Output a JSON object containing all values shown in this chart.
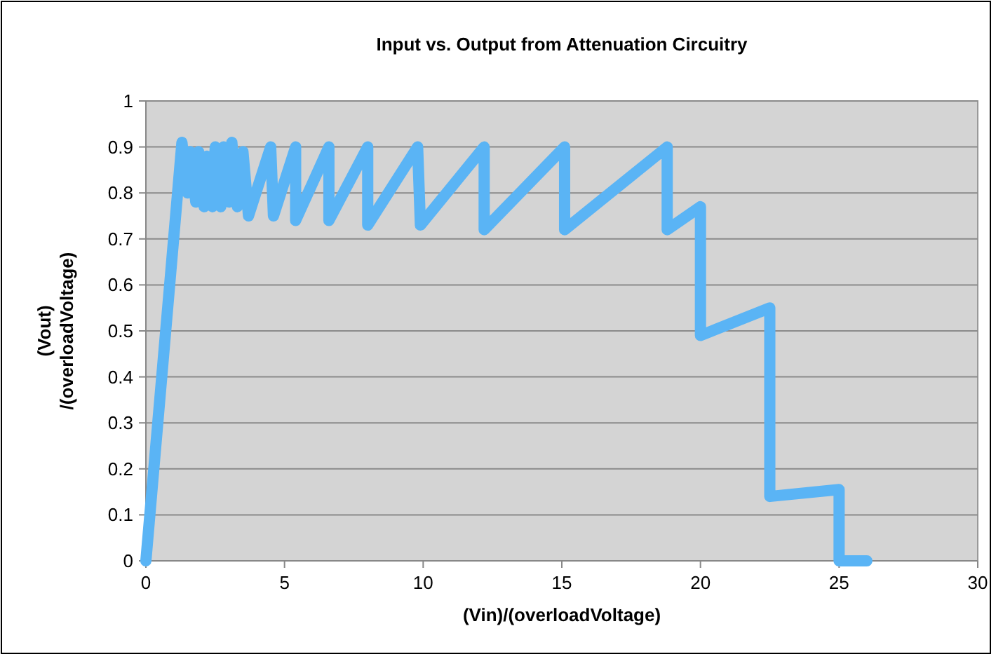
{
  "chart_data": {
    "type": "line",
    "title": "Input vs. Output from Attenuation Circuitry",
    "xlabel": "(Vin)/(overloadVoltage)",
    "ylabel": "(Vout) /(overloadVoltage)",
    "xlim": [
      0,
      30
    ],
    "xticks": [
      0,
      5,
      10,
      15,
      20,
      25,
      30
    ],
    "ylim": [
      0,
      1
    ],
    "yticks": [
      0,
      0.1,
      0.2,
      0.3,
      0.4,
      0.5,
      0.6,
      0.7,
      0.8,
      0.9,
      1
    ],
    "grid": "y",
    "marker": "none",
    "line_style": "solid",
    "series": [
      {
        "color": "#5ab4f5",
        "x": [
          0,
          1.3,
          1.5,
          1.6,
          1.8,
          1.9,
          2.1,
          2.2,
          2.4,
          2.5,
          2.7,
          2.8,
          3.0,
          3.1,
          3.3,
          3.5,
          3.7,
          4.5,
          4.6,
          5.4,
          5.4,
          6.6,
          6.6,
          8.0,
          8.0,
          9.8,
          9.9,
          12.2,
          12.2,
          15.1,
          15.1,
          18.8,
          18.8,
          20.0,
          20.0,
          22.5,
          22.5,
          25.0,
          25.0,
          26.0
        ],
        "values": [
          0,
          0.91,
          0.8,
          0.89,
          0.78,
          0.89,
          0.77,
          0.88,
          0.77,
          0.9,
          0.77,
          0.9,
          0.78,
          0.91,
          0.77,
          0.89,
          0.75,
          0.9,
          0.75,
          0.9,
          0.74,
          0.9,
          0.74,
          0.9,
          0.73,
          0.9,
          0.73,
          0.9,
          0.72,
          0.9,
          0.72,
          0.9,
          0.72,
          0.77,
          0.49,
          0.55,
          0.14,
          0.155,
          0,
          0
        ]
      }
    ]
  }
}
